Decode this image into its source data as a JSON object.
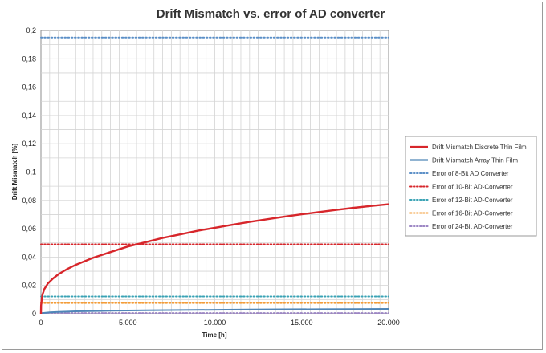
{
  "chart_data": {
    "type": "line",
    "title": "Drift Mismatch vs. error of AD converter",
    "xlabel": "Time [h]",
    "ylabel": "Drift Mismatch [%]",
    "xlim": [
      0,
      20000
    ],
    "ylim": [
      0,
      0.2
    ],
    "xticks": [
      0,
      5000,
      10000,
      15000,
      20000
    ],
    "xtick_labels": [
      "0",
      "5.000",
      "10.000",
      "15.000",
      "20.000"
    ],
    "yticks": [
      0,
      0.02,
      0.04,
      0.06,
      0.08,
      0.1,
      0.12,
      0.14,
      0.16,
      0.18,
      0.2
    ],
    "ytick_labels": [
      "0",
      "0,02",
      "0,04",
      "0,06",
      "0,08",
      "0,1",
      "0,12",
      "0,14",
      "0,16",
      "0,18",
      "0,2"
    ],
    "grid": true,
    "legend_position": "right",
    "series": [
      {
        "name": "Drift Mismatch Discrete Thin Film",
        "color": "#d7262b",
        "style": "solid",
        "x": [
          0,
          10,
          50,
          100,
          200,
          400,
          700,
          1000,
          1500,
          2000,
          3000,
          4000,
          5000,
          6000,
          7000,
          8000,
          9000,
          10000,
          11000,
          12000,
          13000,
          14000,
          15000,
          16000,
          17000,
          18000,
          19000,
          20000
        ],
        "y": [
          0,
          0.006,
          0.011,
          0.014,
          0.0175,
          0.0215,
          0.025,
          0.0278,
          0.0315,
          0.0345,
          0.0395,
          0.0435,
          0.0475,
          0.0505,
          0.0535,
          0.056,
          0.0585,
          0.0607,
          0.0628,
          0.0648,
          0.0667,
          0.0685,
          0.0702,
          0.0718,
          0.0733,
          0.0748,
          0.0761,
          0.0773
        ]
      },
      {
        "name": "Drift Mismatch Array Thin Film",
        "color": "#4f86b8",
        "style": "solid",
        "x": [
          0,
          100,
          500,
          1000,
          2000,
          4000,
          6000,
          8000,
          10000,
          12000,
          14000,
          16000,
          18000,
          20000
        ],
        "y": [
          0,
          0.0005,
          0.001,
          0.0013,
          0.0017,
          0.0021,
          0.0024,
          0.0026,
          0.0028,
          0.003,
          0.0031,
          0.0032,
          0.0033,
          0.0034
        ]
      },
      {
        "name": "Error of 8-Bit AD Converter",
        "color": "#5b8fc7",
        "style": "dotted",
        "x": [
          0,
          20000
        ],
        "y": [
          0.195,
          0.195
        ]
      },
      {
        "name": "Error of 10-Bit AD-Converter",
        "color": "#d7262b",
        "style": "dotted",
        "x": [
          0,
          20000
        ],
        "y": [
          0.049,
          0.049
        ]
      },
      {
        "name": "Error of 12-Bit AD-Converter",
        "color": "#3aa3b5",
        "style": "dotted",
        "x": [
          0,
          20000
        ],
        "y": [
          0.0122,
          0.0122
        ]
      },
      {
        "name": "Error of 16-Bit AD-Converter",
        "color": "#f39c38",
        "style": "dotted",
        "x": [
          0,
          20000
        ],
        "y": [
          0.0076,
          0.0076
        ]
      },
      {
        "name": "Error of 24-Bit AD-Converter",
        "color": "#9c86c4",
        "style": "dotted",
        "x": [
          0,
          20000
        ],
        "y": [
          0.0005,
          0.0005
        ]
      }
    ]
  }
}
